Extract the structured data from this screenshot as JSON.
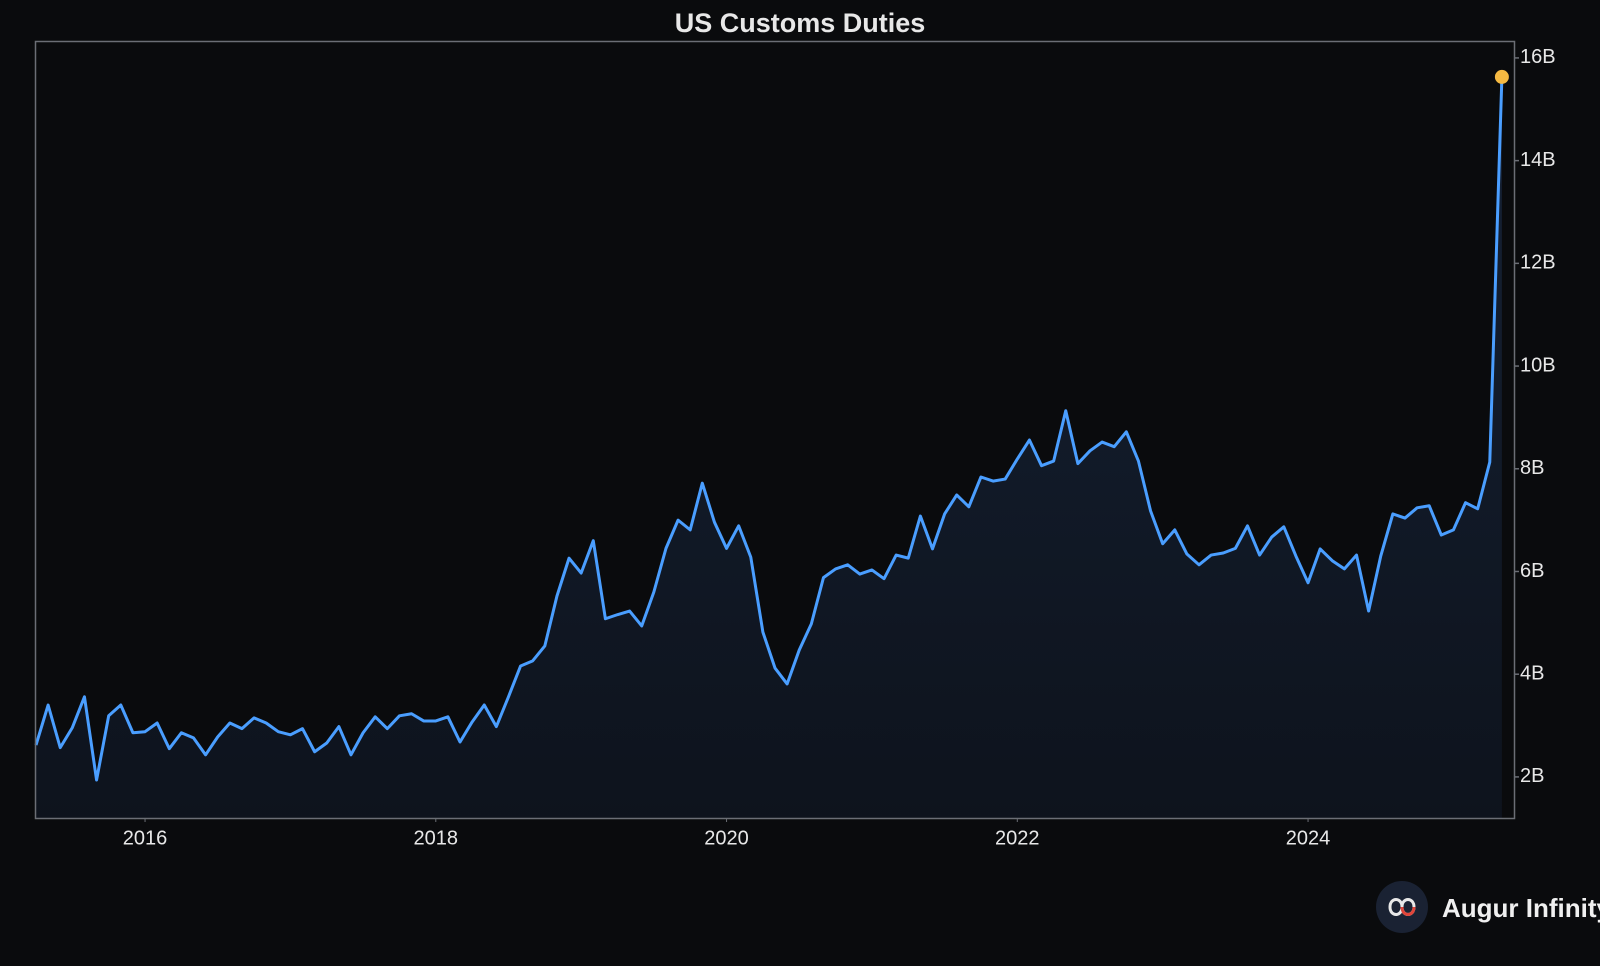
{
  "chart_data": {
    "type": "line",
    "title": "US Customs Duties",
    "x": [
      "2015-04",
      "2015-05",
      "2015-06",
      "2015-07",
      "2015-08",
      "2015-09",
      "2015-10",
      "2015-11",
      "2015-12",
      "2016-01",
      "2016-02",
      "2016-03",
      "2016-04",
      "2016-05",
      "2016-06",
      "2016-07",
      "2016-08",
      "2016-09",
      "2016-10",
      "2016-11",
      "2016-12",
      "2017-01",
      "2017-02",
      "2017-03",
      "2017-04",
      "2017-05",
      "2017-06",
      "2017-07",
      "2017-08",
      "2017-09",
      "2017-10",
      "2017-11",
      "2017-12",
      "2018-01",
      "2018-02",
      "2018-03",
      "2018-04",
      "2018-05",
      "2018-06",
      "2018-07",
      "2018-08",
      "2018-09",
      "2018-10",
      "2018-11",
      "2018-12",
      "2019-01",
      "2019-02",
      "2019-03",
      "2019-04",
      "2019-05",
      "2019-06",
      "2019-07",
      "2019-08",
      "2019-09",
      "2019-10",
      "2019-11",
      "2019-12",
      "2020-01",
      "2020-02",
      "2020-03",
      "2020-04",
      "2020-05",
      "2020-06",
      "2020-07",
      "2020-08",
      "2020-09",
      "2020-10",
      "2020-11",
      "2020-12",
      "2021-01",
      "2021-02",
      "2021-03",
      "2021-04",
      "2021-05",
      "2021-06",
      "2021-07",
      "2021-08",
      "2021-09",
      "2021-10",
      "2021-11",
      "2021-12",
      "2022-01",
      "2022-02",
      "2022-03",
      "2022-04",
      "2022-05",
      "2022-06",
      "2022-07",
      "2022-08",
      "2022-09",
      "2022-10",
      "2022-11",
      "2022-12",
      "2023-01",
      "2023-02",
      "2023-03",
      "2023-04",
      "2023-05",
      "2023-06",
      "2023-07",
      "2023-08",
      "2023-09",
      "2023-10",
      "2023-11",
      "2023-12",
      "2024-01",
      "2024-02",
      "2024-03",
      "2024-04",
      "2024-05",
      "2024-06",
      "2024-07",
      "2024-08",
      "2024-09",
      "2024-10",
      "2024-11",
      "2024-12",
      "2025-01",
      "2025-02",
      "2025-03",
      "2025-04",
      "2025-05"
    ],
    "series": [
      {
        "color": "#4a9eff",
        "marker_color": "#f5b942",
        "values": [
          2.62,
          3.4,
          2.57,
          2.96,
          3.56,
          1.94,
          3.19,
          3.4,
          2.86,
          2.88,
          3.05,
          2.55,
          2.86,
          2.76,
          2.43,
          2.78,
          3.05,
          2.94,
          3.15,
          3.05,
          2.88,
          2.82,
          2.94,
          2.49,
          2.66,
          2.98,
          2.43,
          2.86,
          3.17,
          2.94,
          3.19,
          3.23,
          3.09,
          3.09,
          3.17,
          2.68,
          3.07,
          3.4,
          2.98,
          3.56,
          4.16,
          4.26,
          4.55,
          5.52,
          6.26,
          5.97,
          6.6,
          5.08,
          5.16,
          5.23,
          4.94,
          5.6,
          6.45,
          7.0,
          6.81,
          7.72,
          6.96,
          6.45,
          6.89,
          6.28,
          4.82,
          4.12,
          3.81,
          4.47,
          4.98,
          5.88,
          6.05,
          6.13,
          5.95,
          6.03,
          5.86,
          6.32,
          6.26,
          7.08,
          6.44,
          7.12,
          7.49,
          7.26,
          7.84,
          7.76,
          7.8,
          8.19,
          8.56,
          8.06,
          8.15,
          9.13,
          8.1,
          8.35,
          8.52,
          8.43,
          8.72,
          8.15,
          7.18,
          6.54,
          6.81,
          6.34,
          6.13,
          6.32,
          6.36,
          6.45,
          6.89,
          6.32,
          6.67,
          6.87,
          6.3,
          5.78,
          6.44,
          6.21,
          6.05,
          6.32,
          5.23,
          6.3,
          7.12,
          7.04,
          7.24,
          7.28,
          6.71,
          6.81,
          7.34,
          7.22,
          8.13,
          15.63
        ]
      }
    ],
    "xlim": [
      "2015-04",
      "2025-06"
    ],
    "xticks": [
      {
        "value": "2016-01",
        "label": "2016"
      },
      {
        "value": "2018-01",
        "label": "2018"
      },
      {
        "value": "2020-01",
        "label": "2020"
      },
      {
        "value": "2022-01",
        "label": "2022"
      },
      {
        "value": "2024-01",
        "label": "2024"
      }
    ],
    "ylim": [
      1.2,
      16.31
    ],
    "yticks": [
      {
        "value": 2,
        "label": "2B"
      },
      {
        "value": 4,
        "label": "4B"
      },
      {
        "value": 6,
        "label": "6B"
      },
      {
        "value": 8,
        "label": "8B"
      },
      {
        "value": 10,
        "label": "10B"
      },
      {
        "value": 12,
        "label": "12B"
      },
      {
        "value": 14,
        "label": "14B"
      },
      {
        "value": 16,
        "label": "16B"
      }
    ],
    "grid": false
  },
  "brand": "Augur Infinity"
}
